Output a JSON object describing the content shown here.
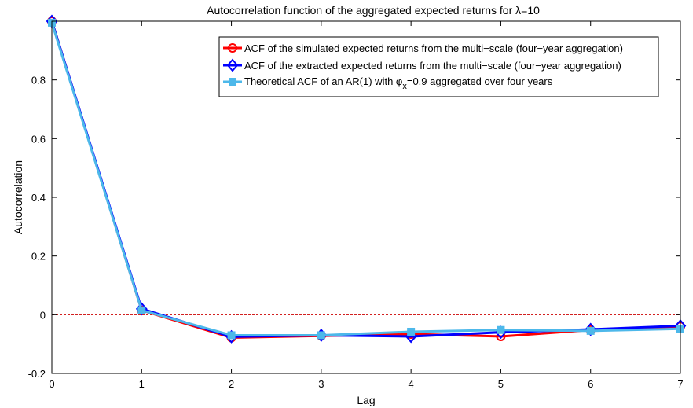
{
  "chart_data": {
    "type": "line",
    "title_prefix": "Autocorrelation function of the aggregated expected returns for ",
    "title_symbol": "λ",
    "title_suffix": "=10",
    "xlabel": "Lag",
    "ylabel": "Autocorrelation",
    "xlim": [
      0,
      7
    ],
    "ylim": [
      -0.2,
      1.0
    ],
    "xticks": [
      0,
      1,
      2,
      3,
      4,
      5,
      6,
      7
    ],
    "yticks": [
      -0.2,
      0,
      0.2,
      0.4,
      0.6,
      0.8
    ],
    "x": [
      0,
      1,
      2,
      3,
      4,
      5,
      6,
      7
    ],
    "reference_line": {
      "y": 0,
      "color": "#cc0000",
      "style": "dashed"
    },
    "legend_position": "top-right",
    "series": [
      {
        "name": "ACF of the simulated expected returns from the multi−scale (four−year aggregation)",
        "color": "#ff0000",
        "marker": "circle",
        "values": [
          1.0,
          0.015,
          -0.078,
          -0.072,
          -0.066,
          -0.074,
          -0.052,
          -0.04
        ]
      },
      {
        "name": "ACF of the extracted expected returns from the multi−scale (four−year aggregation)",
        "color": "#0000ff",
        "marker": "diamond",
        "values": [
          1.0,
          0.02,
          -0.075,
          -0.07,
          -0.074,
          -0.06,
          -0.05,
          -0.038
        ]
      },
      {
        "name_prefix": "Theoretical ACF of an AR(1) with ",
        "name_symbol": "φ",
        "name_sub": "x",
        "name_suffix": "=0.9 aggregated over four years",
        "color": "#4db8ea",
        "marker": "square",
        "values": [
          0.995,
          0.015,
          -0.07,
          -0.07,
          -0.058,
          -0.052,
          -0.055,
          -0.048
        ]
      }
    ]
  }
}
